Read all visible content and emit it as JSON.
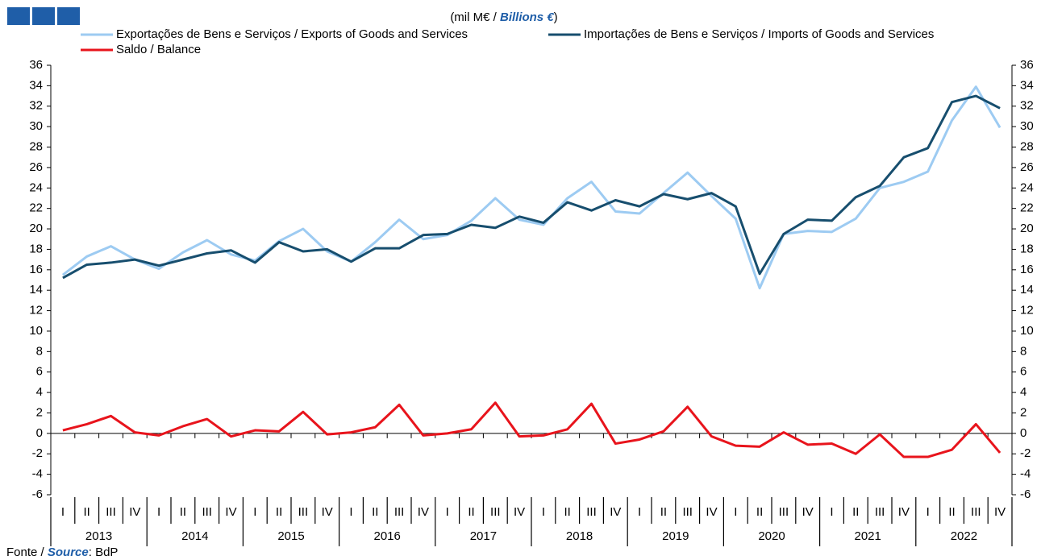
{
  "chart_data": {
    "type": "line",
    "unit_prefix": "(mil M€ /",
    "unit_en": "Billions €",
    "unit_suffix": ")",
    "source_prefix": "Fonte /",
    "source_en": "Source",
    "source_suffix": ": BdP",
    "categories": [
      "I",
      "II",
      "III",
      "IV",
      "I",
      "II",
      "III",
      "IV",
      "I",
      "II",
      "III",
      "IV",
      "I",
      "II",
      "III",
      "IV",
      "I",
      "II",
      "III",
      "IV",
      "I",
      "II",
      "III",
      "IV",
      "I",
      "II",
      "III",
      "IV",
      "I",
      "II",
      "III",
      "IV",
      "I",
      "II",
      "III",
      "IV",
      "I",
      "II",
      "III",
      "IV"
    ],
    "years": [
      "2013",
      "2014",
      "2015",
      "2016",
      "2017",
      "2018",
      "2019",
      "2020",
      "2021",
      "2022"
    ],
    "series": [
      {
        "name": "Exportações de Bens e Serviços / Exports of Goods and Services",
        "color": "#9dcbf2",
        "values": [
          15.5,
          17.3,
          18.3,
          17.0,
          16.1,
          17.7,
          18.9,
          17.5,
          16.9,
          18.8,
          20.0,
          17.8,
          16.8,
          18.7,
          20.9,
          19.0,
          19.4,
          20.8,
          23.0,
          20.9,
          20.4,
          23.0,
          24.6,
          21.7,
          21.5,
          23.5,
          25.5,
          23.2,
          21.0,
          14.2,
          19.5,
          19.8,
          19.7,
          21.0,
          24.0,
          24.6,
          25.6,
          30.6,
          33.9,
          29.9
        ]
      },
      {
        "name": "Importações de Bens e Serviços / Imports of Goods and Services",
        "color": "#174e6e",
        "values": [
          15.2,
          16.5,
          16.7,
          17.0,
          16.4,
          17.0,
          17.6,
          17.9,
          16.7,
          18.7,
          17.8,
          18.0,
          16.8,
          18.1,
          18.1,
          19.4,
          19.5,
          20.4,
          20.1,
          21.2,
          20.6,
          22.6,
          21.8,
          22.8,
          22.2,
          23.4,
          22.9,
          23.5,
          22.2,
          15.6,
          19.5,
          20.9,
          20.8,
          23.1,
          24.2,
          27.0,
          27.9,
          32.4,
          33.0,
          31.8
        ]
      },
      {
        "name": "Saldo / Balance",
        "color": "#e8141c",
        "values": [
          0.3,
          0.9,
          1.7,
          0.1,
          -0.2,
          0.7,
          1.4,
          -0.3,
          0.3,
          0.2,
          2.1,
          -0.1,
          0.1,
          0.6,
          2.8,
          -0.2,
          0.0,
          0.4,
          3.0,
          -0.3,
          -0.2,
          0.4,
          2.9,
          -1.0,
          -0.6,
          0.2,
          2.6,
          -0.3,
          -1.2,
          -1.3,
          0.1,
          -1.1,
          -1.0,
          -2.0,
          -0.1,
          -2.3,
          -2.3,
          -1.6,
          0.9,
          -1.9
        ]
      }
    ],
    "ylim": [
      -6,
      36
    ],
    "yticks": [
      -6,
      -4,
      -2,
      0,
      2,
      4,
      6,
      8,
      10,
      12,
      14,
      16,
      18,
      20,
      22,
      24,
      26,
      28,
      30,
      32,
      34,
      36
    ],
    "y2lim": [
      -6,
      36
    ],
    "y2ticks": [
      -6,
      -4,
      -2,
      0,
      2,
      4,
      6,
      8,
      10,
      12,
      14,
      16,
      18,
      20,
      22,
      24,
      26,
      28,
      30,
      32,
      34,
      36
    ],
    "grid": false
  }
}
